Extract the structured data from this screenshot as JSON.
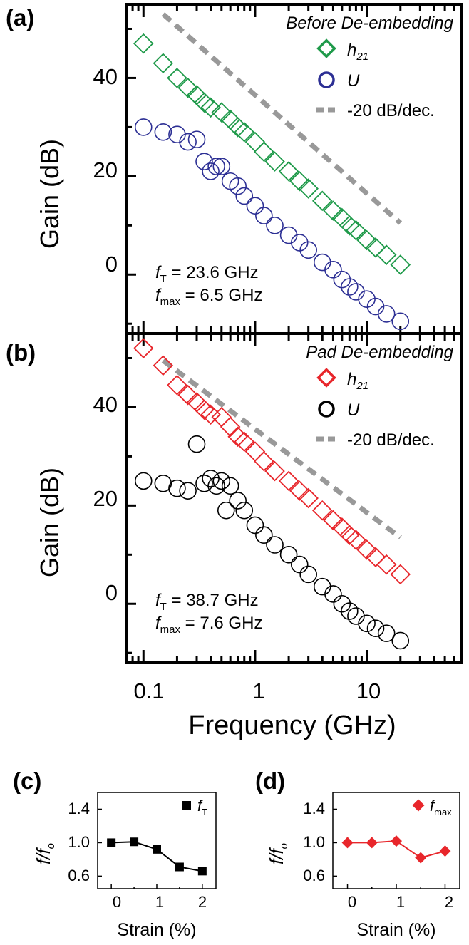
{
  "panels": {
    "a": {
      "label": "(a)",
      "annotation": "Before De-embedding",
      "legend": {
        "h21_base": "h",
        "h21_sub": "21",
        "u": "U",
        "slope": "-20 dB/dec."
      },
      "ft": {
        "sym": "f",
        "sub": "T",
        "value": " = 23.6 GHz"
      },
      "fmax": {
        "sym": "f",
        "sub": "max",
        "value": " = 6.5 GHz"
      }
    },
    "b": {
      "label": "(b)",
      "annotation": "Pad De-embedding",
      "legend": {
        "h21_base": "h",
        "h21_sub": "21",
        "u": "U",
        "slope": "-20 dB/dec."
      },
      "ft": {
        "sym": "f",
        "sub": "T",
        "value": " =  38.7 GHz"
      },
      "fmax": {
        "sym": "f",
        "sub": "max",
        "value": " = 7.6 GHz"
      }
    },
    "c": {
      "label": "(c)",
      "ylabel_a": "f",
      "ylabel_slash": "/",
      "ylabel_b": "f",
      "ylabel_sub": "o",
      "xlabel": "Strain (%)",
      "legend_sym": "f",
      "legend_sub": "T"
    },
    "d": {
      "label": "(d)",
      "ylabel_a": "f",
      "ylabel_slash": "/",
      "ylabel_b": "f",
      "ylabel_sub": "o",
      "xlabel": "Strain (%)",
      "legend_sym": "f",
      "legend_sub": "max"
    }
  },
  "axes_text": {
    "ylabel": "Gain (dB)",
    "xlabel": "Frequency (GHz)",
    "xticks": [
      "0.1",
      "1",
      "10"
    ],
    "yticks": [
      "0",
      "20",
      "40"
    ],
    "small_yticks": [
      "0.6",
      "1.0",
      "1.4"
    ],
    "small_xticks": [
      "0",
      "1",
      "2"
    ]
  },
  "colors": {
    "h21_a": "#1f9a4a",
    "u_a": "#2c2f94",
    "h21_b": "#e8262b",
    "u_b": "#000000",
    "slope": "#999999",
    "fmax_d": "#e8262b",
    "ft_c": "#000000"
  },
  "chart_data": [
    {
      "type": "scatter",
      "panel": "a",
      "xlabel": "Frequency (GHz)",
      "ylabel": "Gain (dB)",
      "x_scale": "log",
      "xlim": [
        0.07,
        70
      ],
      "ylim": [
        -12,
        55
      ],
      "series": [
        {
          "name": "h21",
          "marker": "diamond-open",
          "x": [
            0.1,
            0.15,
            0.2,
            0.25,
            0.3,
            0.35,
            0.4,
            0.5,
            0.6,
            0.7,
            0.8,
            1,
            1.2,
            1.5,
            2,
            2.5,
            3,
            4,
            5,
            6,
            7,
            8,
            10,
            12,
            15,
            20
          ],
          "y": [
            47,
            43,
            40,
            38,
            36.5,
            35,
            34,
            33,
            31.5,
            30,
            29,
            27,
            25,
            23,
            21,
            19,
            17.5,
            15,
            13,
            11.5,
            10,
            9,
            7,
            5.5,
            4,
            2
          ]
        },
        {
          "name": "U",
          "marker": "circle-open",
          "x": [
            0.1,
            0.15,
            0.2,
            0.25,
            0.3,
            0.35,
            0.4,
            0.45,
            0.5,
            0.6,
            0.7,
            0.8,
            1,
            1.2,
            1.5,
            2,
            2.5,
            3,
            4,
            5,
            6,
            7,
            8,
            10,
            12,
            15,
            20
          ],
          "y": [
            30,
            29,
            28.5,
            27,
            27.5,
            23,
            21,
            22,
            22,
            19,
            18,
            16,
            14,
            12,
            10,
            8,
            6.5,
            5,
            2.5,
            1,
            -1,
            -2.5,
            -3.5,
            -5,
            -6.5,
            -8,
            -9.5
          ]
        }
      ],
      "reference_line": {
        "name": "-20 dB/dec.",
        "x": [
          0.15,
          20
        ],
        "y": [
          53,
          10.5
        ]
      },
      "annotations": [
        "fT = 23.6 GHz",
        "fmax = 6.5 GHz"
      ]
    },
    {
      "type": "scatter",
      "panel": "b",
      "xlabel": "Frequency (GHz)",
      "ylabel": "Gain (dB)",
      "x_scale": "log",
      "xlim": [
        0.07,
        70
      ],
      "ylim": [
        -12,
        55
      ],
      "series": [
        {
          "name": "h21",
          "marker": "diamond-open",
          "x": [
            0.1,
            0.15,
            0.2,
            0.25,
            0.3,
            0.35,
            0.4,
            0.5,
            0.6,
            0.7,
            0.8,
            1,
            1.2,
            1.5,
            2,
            2.5,
            3,
            4,
            5,
            6,
            7,
            8,
            10,
            12,
            15,
            20
          ],
          "y": [
            52,
            48.5,
            44.5,
            42.5,
            41,
            39.5,
            38.5,
            38,
            36,
            34,
            33,
            31,
            29,
            27,
            25,
            23,
            21.5,
            19,
            17,
            15.5,
            14,
            13,
            11,
            9.5,
            8,
            6
          ]
        },
        {
          "name": "U",
          "marker": "circle-open",
          "x": [
            0.1,
            0.15,
            0.2,
            0.25,
            0.3,
            0.35,
            0.4,
            0.45,
            0.5,
            0.55,
            0.6,
            0.7,
            0.8,
            1,
            1.2,
            1.5,
            2,
            2.5,
            3,
            4,
            5,
            6,
            7,
            8,
            10,
            12,
            15,
            20
          ],
          "y": [
            25,
            24.5,
            23.5,
            23,
            32.5,
            24.5,
            25.5,
            24,
            25,
            19,
            24,
            21,
            19,
            16,
            14,
            12,
            10,
            8,
            6,
            3.5,
            2,
            0,
            -1.5,
            -2.5,
            -4,
            -5,
            -6,
            -7.5
          ]
        }
      ],
      "reference_line": {
        "name": "-20 dB/dec.",
        "x": [
          0.15,
          20
        ],
        "y": [
          49.5,
          13.5
        ]
      },
      "annotations": [
        "fT = 38.7 GHz",
        "fmax = 7.6 GHz"
      ]
    },
    {
      "type": "line",
      "panel": "c",
      "xlabel": "Strain (%)",
      "ylabel": "f/fo",
      "xlim": [
        -0.3,
        2.3
      ],
      "ylim": [
        0.45,
        1.6
      ],
      "series": [
        {
          "name": "fT",
          "marker": "square",
          "x": [
            0,
            0.5,
            1,
            1.5,
            2
          ],
          "y": [
            1.0,
            1.01,
            0.92,
            0.71,
            0.66
          ]
        }
      ]
    },
    {
      "type": "line",
      "panel": "d",
      "xlabel": "Strain (%)",
      "ylabel": "f/fo",
      "xlim": [
        -0.3,
        2.3
      ],
      "ylim": [
        0.45,
        1.6
      ],
      "series": [
        {
          "name": "fmax",
          "marker": "diamond",
          "x": [
            0,
            0.5,
            1,
            1.5,
            2
          ],
          "y": [
            1.0,
            1.0,
            1.02,
            0.82,
            0.9
          ]
        }
      ]
    }
  ]
}
